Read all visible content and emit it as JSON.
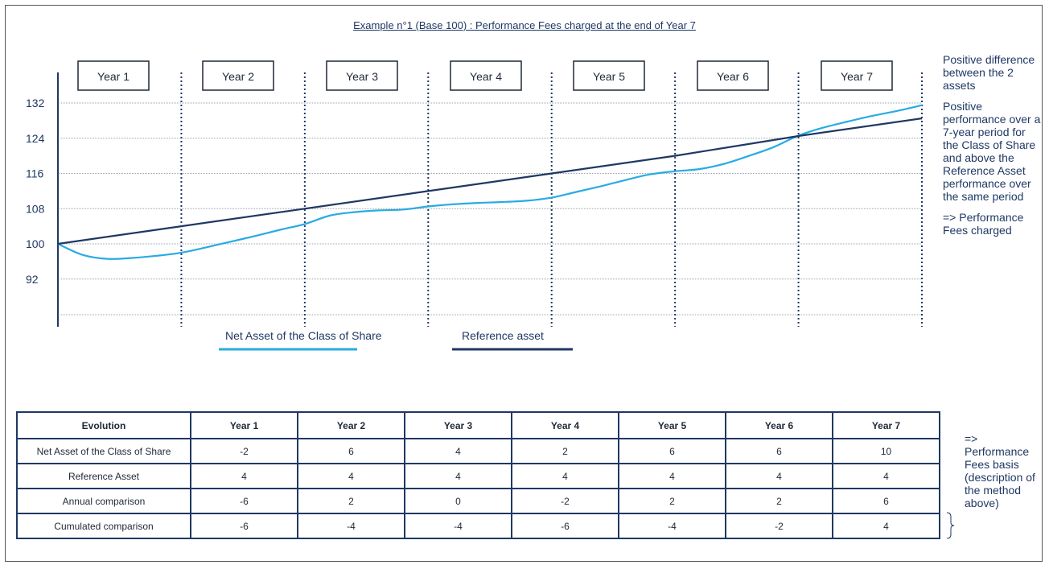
{
  "title": "Example  n°1 (Base 100) : Performance Fees charged at the end of Year 7",
  "chart_data": {
    "type": "line",
    "year_labels": [
      "Year 1",
      "Year 2",
      "Year 3",
      "Year 4",
      "Year 5",
      "Year 6",
      "Year 7"
    ],
    "y_ticks": [
      132,
      124,
      116,
      108,
      100,
      92
    ],
    "ylim": [
      84,
      136
    ],
    "xlim": [
      0,
      7
    ],
    "grid": true,
    "legend_position": "bottom",
    "series": [
      {
        "name": "Net Asset of the Class of Share",
        "color": "#29abe2",
        "x": [
          0,
          0.2,
          0.4,
          0.6,
          0.8,
          1,
          1.2,
          1.4,
          1.6,
          1.8,
          2,
          2.2,
          2.4,
          2.6,
          2.8,
          3,
          3.2,
          3.4,
          3.6,
          3.8,
          4,
          4.2,
          4.4,
          4.6,
          4.8,
          5,
          5.2,
          5.4,
          5.6,
          5.8,
          6,
          6.2,
          6.4,
          6.6,
          6.8,
          7
        ],
        "values": [
          100,
          97.5,
          96.6,
          96.8,
          97.3,
          98,
          99.2,
          100.5,
          101.8,
          103.2,
          104.5,
          106.4,
          107.2,
          107.6,
          107.8,
          108.5,
          109,
          109.3,
          109.5,
          109.8,
          110.5,
          111.8,
          113.1,
          114.5,
          115.8,
          116.5,
          117,
          118.2,
          120,
          122,
          124.6,
          126.4,
          127.8,
          129.1,
          130.2,
          131.5
        ]
      },
      {
        "name": "Reference asset",
        "color": "#1f3864",
        "x": [
          0,
          1,
          2,
          3,
          4,
          5,
          6,
          7
        ],
        "values": [
          100,
          104,
          108,
          112,
          116,
          120,
          124.5,
          128.5
        ]
      }
    ]
  },
  "side_notes": [
    "Positive difference between the 2 assets",
    "Positive performance over a 7-year period for the Class of Share and above the Reference Asset performance over the same period",
    "=> Performance Fees charged"
  ],
  "table": {
    "headers": [
      "Evolution",
      "Year 1",
      "Year 2",
      "Year 3",
      "Year 4",
      "Year 5",
      "Year 6",
      "Year 7"
    ],
    "rows": [
      [
        "Net Asset of the Class of Share",
        "-2",
        "6",
        "4",
        "2",
        "6",
        "6",
        "10"
      ],
      [
        "Reference Asset",
        "4",
        "4",
        "4",
        "4",
        "4",
        "4",
        "4"
      ],
      [
        "Annual comparison",
        "-6",
        "2",
        "0",
        "-2",
        "2",
        "2",
        "6"
      ],
      [
        "Cumulated comparison",
        "-6",
        "-4",
        "-4",
        "-6",
        "-4",
        "-2",
        "4"
      ]
    ]
  },
  "table_note": "=> Performance Fees basis (description of the method above)"
}
